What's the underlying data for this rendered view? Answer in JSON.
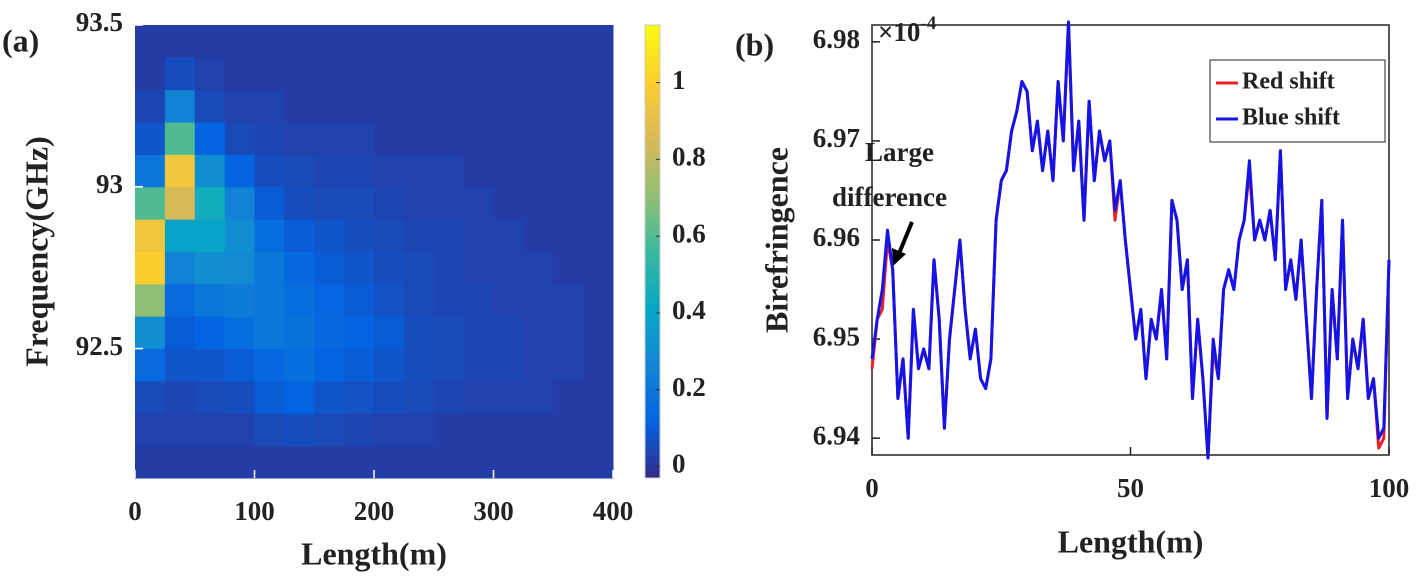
{
  "chart_data": [
    {
      "type": "heatmap",
      "panel_label": "(a)",
      "xlabel": "Length(m)",
      "ylabel": "Frequency(GHz)",
      "colormap": "parula",
      "x_edges": [
        0,
        25,
        50,
        75,
        100,
        125,
        150,
        175,
        200,
        225,
        250,
        275,
        300,
        325,
        350,
        375,
        400
      ],
      "y_edges": [
        92.1,
        92.2,
        92.3,
        92.4,
        92.5,
        92.6,
        92.7,
        92.8,
        92.9,
        93.0,
        93.1,
        93.2,
        93.3,
        93.4,
        93.5
      ],
      "z": [
        [
          0.02,
          0.02,
          0.02,
          0.02,
          0.02,
          0.02,
          0.02,
          0.02,
          0.02,
          0.02,
          0.02,
          0.02,
          0.02,
          0.02,
          0.02,
          0.02
        ],
        [
          0.03,
          0.03,
          0.03,
          0.03,
          0.05,
          0.06,
          0.05,
          0.04,
          0.03,
          0.03,
          0.02,
          0.02,
          0.02,
          0.02,
          0.02,
          0.02
        ],
        [
          0.05,
          0.04,
          0.05,
          0.06,
          0.1,
          0.12,
          0.08,
          0.07,
          0.06,
          0.05,
          0.04,
          0.03,
          0.03,
          0.03,
          0.02,
          0.02
        ],
        [
          0.15,
          0.08,
          0.08,
          0.1,
          0.14,
          0.16,
          0.12,
          0.1,
          0.08,
          0.06,
          0.05,
          0.04,
          0.04,
          0.03,
          0.03,
          0.02
        ],
        [
          0.3,
          0.1,
          0.12,
          0.16,
          0.2,
          0.18,
          0.14,
          0.12,
          0.1,
          0.06,
          0.05,
          0.04,
          0.04,
          0.03,
          0.03,
          0.02
        ],
        [
          0.7,
          0.15,
          0.2,
          0.22,
          0.2,
          0.16,
          0.13,
          0.1,
          0.07,
          0.05,
          0.04,
          0.04,
          0.03,
          0.03,
          0.03,
          0.02
        ],
        [
          1.0,
          0.25,
          0.3,
          0.28,
          0.2,
          0.14,
          0.1,
          0.08,
          0.06,
          0.05,
          0.04,
          0.03,
          0.03,
          0.03,
          0.02,
          0.02
        ],
        [
          0.95,
          0.4,
          0.4,
          0.3,
          0.16,
          0.1,
          0.08,
          0.06,
          0.05,
          0.04,
          0.04,
          0.03,
          0.03,
          0.02,
          0.02,
          0.02
        ],
        [
          0.6,
          0.85,
          0.45,
          0.25,
          0.1,
          0.06,
          0.05,
          0.05,
          0.04,
          0.03,
          0.03,
          0.03,
          0.02,
          0.02,
          0.02,
          0.02
        ],
        [
          0.2,
          0.95,
          0.3,
          0.12,
          0.06,
          0.05,
          0.04,
          0.04,
          0.03,
          0.03,
          0.03,
          0.02,
          0.02,
          0.02,
          0.02,
          0.02
        ],
        [
          0.08,
          0.6,
          0.12,
          0.05,
          0.04,
          0.03,
          0.03,
          0.03,
          0.02,
          0.02,
          0.02,
          0.02,
          0.02,
          0.02,
          0.02,
          0.02
        ],
        [
          0.04,
          0.25,
          0.05,
          0.03,
          0.03,
          0.02,
          0.02,
          0.02,
          0.02,
          0.02,
          0.02,
          0.02,
          0.02,
          0.02,
          0.02,
          0.02
        ],
        [
          0.02,
          0.06,
          0.03,
          0.02,
          0.02,
          0.02,
          0.02,
          0.02,
          0.02,
          0.02,
          0.02,
          0.02,
          0.02,
          0.02,
          0.02,
          0.02
        ],
        [
          0.02,
          0.02,
          0.02,
          0.02,
          0.02,
          0.02,
          0.02,
          0.02,
          0.02,
          0.02,
          0.02,
          0.02,
          0.02,
          0.02,
          0.02,
          0.02
        ]
      ],
      "xlim": [
        0,
        400
      ],
      "xticks": [
        0,
        100,
        200,
        300,
        400
      ],
      "ylim": [
        92.1,
        93.5
      ],
      "yticks": [
        92.5,
        93,
        93.5
      ],
      "clim": [
        -0.03,
        1.15
      ],
      "cticks": [
        0,
        0.2,
        0.4,
        0.6,
        0.8,
        1
      ]
    },
    {
      "type": "line",
      "panel_label": "(b)",
      "xlabel": "Length(m)",
      "ylabel": "Birefringence",
      "y_multiplier": {
        "base": "×10",
        "exponent": "-4"
      },
      "annotation": [
        "Large",
        "difference"
      ],
      "legend": "upper right",
      "x": [
        0,
        1,
        2,
        3,
        4,
        5,
        6,
        7,
        8,
        9,
        10,
        11,
        12,
        13,
        14,
        15,
        16,
        17,
        18,
        19,
        20,
        21,
        22,
        23,
        24,
        25,
        26,
        27,
        28,
        29,
        30,
        31,
        32,
        33,
        34,
        35,
        36,
        37,
        38,
        39,
        40,
        41,
        42,
        43,
        44,
        45,
        46,
        47,
        48,
        49,
        50,
        51,
        52,
        53,
        54,
        55,
        56,
        57,
        58,
        59,
        60,
        61,
        62,
        63,
        64,
        65,
        66,
        67,
        68,
        69,
        70,
        71,
        72,
        73,
        74,
        75,
        76,
        77,
        78,
        79,
        80,
        81,
        82,
        83,
        84,
        85,
        86,
        87,
        88,
        89,
        90,
        91,
        92,
        93,
        94,
        95,
        96,
        97,
        98,
        99,
        100
      ],
      "series": [
        {
          "name": "Red shift",
          "color": "#e8212a",
          "values": [
            6.947,
            6.952,
            6.953,
            6.96,
            6.957,
            6.944,
            6.948,
            6.94,
            6.953,
            6.947,
            6.949,
            6.947,
            6.958,
            6.952,
            6.941,
            6.95,
            6.955,
            6.96,
            6.953,
            6.948,
            6.951,
            6.946,
            6.945,
            6.948,
            6.962,
            6.966,
            6.967,
            6.971,
            6.973,
            6.976,
            6.975,
            6.969,
            6.972,
            6.967,
            6.971,
            6.966,
            6.976,
            6.97,
            6.982,
            6.967,
            6.972,
            6.962,
            6.974,
            6.966,
            6.971,
            6.968,
            6.97,
            6.962,
            6.966,
            6.96,
            6.955,
            6.95,
            6.953,
            6.946,
            6.952,
            6.95,
            6.955,
            6.948,
            6.964,
            6.962,
            6.955,
            6.958,
            6.944,
            6.952,
            6.946,
            6.938,
            6.949,
            6.946,
            6.955,
            6.957,
            6.955,
            6.96,
            6.962,
            6.967,
            6.96,
            6.962,
            6.96,
            6.963,
            6.958,
            6.969,
            6.955,
            6.958,
            6.954,
            6.96,
            6.952,
            6.944,
            6.955,
            6.964,
            6.942,
            6.955,
            6.948,
            6.962,
            6.944,
            6.95,
            6.947,
            6.952,
            6.944,
            6.946,
            6.939,
            6.94,
            6.958
          ]
        },
        {
          "name": "Blue shift",
          "color": "#1414e6",
          "values": [
            6.948,
            6.952,
            6.955,
            6.961,
            6.957,
            6.944,
            6.948,
            6.94,
            6.953,
            6.947,
            6.949,
            6.947,
            6.958,
            6.952,
            6.941,
            6.95,
            6.955,
            6.96,
            6.953,
            6.948,
            6.951,
            6.946,
            6.945,
            6.948,
            6.962,
            6.966,
            6.967,
            6.971,
            6.973,
            6.976,
            6.975,
            6.969,
            6.972,
            6.967,
            6.971,
            6.966,
            6.976,
            6.97,
            6.982,
            6.967,
            6.972,
            6.962,
            6.974,
            6.966,
            6.971,
            6.968,
            6.97,
            6.963,
            6.966,
            6.96,
            6.955,
            6.95,
            6.953,
            6.946,
            6.952,
            6.95,
            6.955,
            6.948,
            6.964,
            6.962,
            6.955,
            6.958,
            6.944,
            6.952,
            6.946,
            6.938,
            6.95,
            6.946,
            6.955,
            6.957,
            6.955,
            6.96,
            6.962,
            6.968,
            6.96,
            6.962,
            6.96,
            6.963,
            6.958,
            6.969,
            6.955,
            6.958,
            6.954,
            6.96,
            6.952,
            6.944,
            6.955,
            6.964,
            6.942,
            6.955,
            6.948,
            6.962,
            6.944,
            6.95,
            6.947,
            6.952,
            6.944,
            6.946,
            6.94,
            6.941,
            6.958
          ]
        }
      ],
      "xlim": [
        0,
        100
      ],
      "xticks": [
        0,
        50,
        100
      ],
      "ylim": [
        6.9383,
        6.9817
      ],
      "yticks": [
        6.94,
        6.95,
        6.96,
        6.97,
        6.98
      ]
    }
  ]
}
